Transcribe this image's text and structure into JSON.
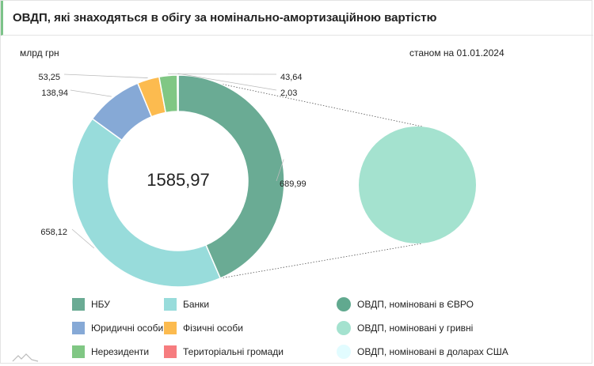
{
  "header": {
    "title": "ОВДП, які знаходяться в обігу за номінально-амортизаційною вартістю"
  },
  "chart_data": {
    "type": "pie",
    "unit_label": "млрд грн",
    "as_of": "станом на 01.01.2024",
    "total_label": "1585,97",
    "donut": {
      "slices": [
        {
          "name": "НБУ",
          "value": 689.99,
          "label": "689,99",
          "color": "#6aab94"
        },
        {
          "name": "Банки",
          "value": 658.12,
          "label": "658,12",
          "color": "#98dcdb"
        },
        {
          "name": "Юридичні особи",
          "value": 138.94,
          "label": "138,94",
          "color": "#86a9d6"
        },
        {
          "name": "Фізичні особи",
          "value": 53.25,
          "label": "53,25",
          "color": "#fcbb4f"
        },
        {
          "name": "Нерезиденти",
          "value": 43.64,
          "label": "43,64",
          "color": "#80c784"
        },
        {
          "name": "Територіальні громади",
          "value": 2.03,
          "label": "2,03",
          "color": "#f67c7f"
        }
      ]
    },
    "breakdown": {
      "of": "НБУ",
      "slices": [
        {
          "name": "ОВДП, номіновані в ЄВРО",
          "value": 0,
          "color": "#61a98f"
        },
        {
          "name": "ОВДП, номіновані у гривні",
          "value": 689.99,
          "color": "#a4e2cf"
        },
        {
          "name": "ОВДП, номіновані в доларах США",
          "value": 0,
          "color": "#e2fcff"
        }
      ]
    }
  },
  "legend": [
    {
      "label": "НБУ",
      "color": "#6aab94",
      "shape": "square"
    },
    {
      "label": "Банки",
      "color": "#98dcdb",
      "shape": "square"
    },
    {
      "label": "ОВДП, номіновані в ЄВРО",
      "color": "#61a98f",
      "shape": "circle"
    },
    {
      "label": "Юридичні особи",
      "color": "#86a9d6",
      "shape": "square"
    },
    {
      "label": "Фізичні особи",
      "color": "#fcbb4f",
      "shape": "square"
    },
    {
      "label": "ОВДП, номіновані у гривні",
      "color": "#a4e2cf",
      "shape": "circle"
    },
    {
      "label": "Нерезиденти",
      "color": "#80c784",
      "shape": "square"
    },
    {
      "label": "Територіальні громади",
      "color": "#f67c7f",
      "shape": "square"
    },
    {
      "label": "ОВДП, номіновані в доларах США",
      "color": "#e2fcff",
      "shape": "circle"
    }
  ],
  "icons": {
    "logo": "mountain-logo-icon"
  }
}
